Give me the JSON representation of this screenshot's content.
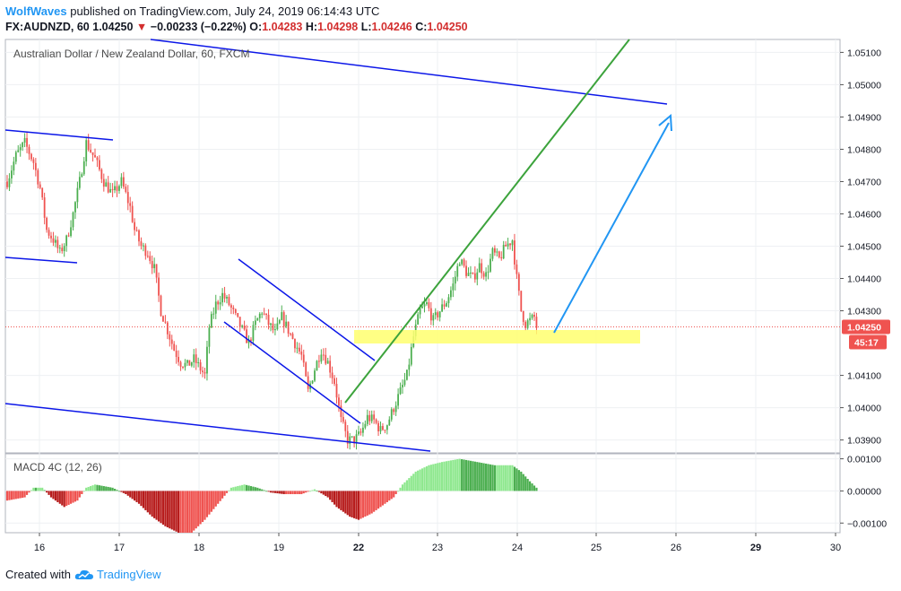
{
  "header": {
    "author": "WolfWaves",
    "published": "published on TradingView.com, July 24, 2019 06:14:43 UTC",
    "symbol_line": "FX:AUDNZD, 60",
    "last": "1.04250",
    "change": "−0.00233 (−0.22%)",
    "o_label": "O:",
    "o": "1.04283",
    "h_label": "H:",
    "h": "1.04298",
    "l_label": "L:",
    "l": "1.04246",
    "c_label": "C:",
    "c": "1.04250"
  },
  "footer": {
    "created_with": "Created with",
    "brand": "TradingView",
    "logo_icon": "tradingview-cloud-icon"
  },
  "colors": {
    "up": "#4caf50",
    "down": "#ef5350",
    "blue": "#0c17e8",
    "green": "#3ca33c",
    "arrow": "#2196f3",
    "zone": "#ffff6e",
    "macd_up": "#8fe88f",
    "macd_up_dark": "#4caf50",
    "macd_down": "#ef5350",
    "macd_down_dark": "#b71c1c"
  },
  "chart_data": {
    "type": "candlestick",
    "title": "Australian Dollar / New Zealand Dollar, 60, FXCM",
    "x_ticks": [
      "16",
      "17",
      "18",
      "19",
      "22",
      "23",
      "24",
      "25",
      "26",
      "29",
      "30"
    ],
    "y_ticks": [
      "1.05100",
      "1.05000",
      "1.04900",
      "1.04800",
      "1.04700",
      "1.04600",
      "1.04500",
      "1.04400",
      "1.04300",
      "1.04100",
      "1.04000",
      "1.03900"
    ],
    "ylim": [
      1.0386,
      1.0514
    ],
    "price_label": "1.04250",
    "countdown_label": "45:17",
    "path": [
      [
        0,
        1.047
      ],
      [
        4,
        1.0478
      ],
      [
        8,
        1.0482
      ],
      [
        12,
        1.0476
      ],
      [
        15,
        1.0468
      ],
      [
        18,
        1.0455
      ],
      [
        21,
        1.0452
      ],
      [
        24,
        1.0448
      ],
      [
        27,
        1.0452
      ],
      [
        30,
        1.046
      ],
      [
        33,
        1.047
      ],
      [
        36,
        1.0482
      ],
      [
        40,
        1.0477
      ],
      [
        44,
        1.047
      ],
      [
        48,
        1.0466
      ],
      [
        52,
        1.047
      ],
      [
        56,
        1.0462
      ],
      [
        58,
        1.0455
      ],
      [
        61,
        1.045
      ],
      [
        64,
        1.0448
      ],
      [
        67,
        1.0443
      ],
      [
        70,
        1.043
      ],
      [
        73,
        1.0424
      ],
      [
        76,
        1.0418
      ],
      [
        79,
        1.0414
      ],
      [
        82,
        1.0413
      ],
      [
        85,
        1.0415
      ],
      [
        88,
        1.0412
      ],
      [
        90,
        1.041
      ],
      [
        92,
        1.0425
      ],
      [
        95,
        1.0432
      ],
      [
        98,
        1.0435
      ],
      [
        101,
        1.0432
      ],
      [
        104,
        1.0428
      ],
      [
        107,
        1.0424
      ],
      [
        110,
        1.042
      ],
      [
        113,
        1.0426
      ],
      [
        116,
        1.043
      ],
      [
        119,
        1.0426
      ],
      [
        122,
        1.0423
      ],
      [
        125,
        1.0428
      ],
      [
        128,
        1.0424
      ],
      [
        131,
        1.042
      ],
      [
        134,
        1.0416
      ],
      [
        137,
        1.0405
      ],
      [
        140,
        1.0412
      ],
      [
        143,
        1.0418
      ],
      [
        146,
        1.0414
      ],
      [
        149,
        1.0408
      ],
      [
        152,
        1.0396
      ],
      [
        155,
        1.039
      ],
      [
        158,
        1.039
      ],
      [
        161,
        1.0392
      ],
      [
        164,
        1.0397
      ],
      [
        167,
        1.0396
      ],
      [
        170,
        1.0393
      ],
      [
        173,
        1.0395
      ],
      [
        176,
        1.04
      ],
      [
        179,
        1.0405
      ],
      [
        182,
        1.041
      ],
      [
        185,
        1.0422
      ],
      [
        188,
        1.043
      ],
      [
        191,
        1.0432
      ],
      [
        194,
        1.0427
      ],
      [
        197,
        1.043
      ],
      [
        200,
        1.0433
      ],
      [
        203,
        1.0438
      ],
      [
        206,
        1.0446
      ],
      [
        209,
        1.0442
      ],
      [
        212,
        1.044
      ],
      [
        215,
        1.0444
      ],
      [
        218,
        1.0441
      ],
      [
        221,
        1.0448
      ],
      [
        224,
        1.0446
      ],
      [
        227,
        1.045
      ],
      [
        230,
        1.0452
      ],
      [
        232,
        1.044
      ],
      [
        234,
        1.043
      ],
      [
        236,
        1.0426
      ],
      [
        238,
        1.0427
      ],
      [
        240,
        1.0428
      ],
      [
        241,
        1.0425
      ]
    ],
    "macd": {
      "labels": [
        "MACD 4C (12, 26)"
      ],
      "y_ticks": [
        "0.00100",
        "0.00000",
        "−0.00100"
      ],
      "ylim": [
        -0.0013,
        0.0011
      ],
      "path": [
        [
          0,
          -0.0003
        ],
        [
          8,
          -0.0002
        ],
        [
          12,
          0.0001
        ],
        [
          16,
          0.0001
        ],
        [
          20,
          -0.0002
        ],
        [
          26,
          -0.0005
        ],
        [
          32,
          -0.0003
        ],
        [
          36,
          0.0001
        ],
        [
          40,
          0.0002
        ],
        [
          48,
          0.0001
        ],
        [
          54,
          -0.0001
        ],
        [
          60,
          -0.0004
        ],
        [
          66,
          -0.0008
        ],
        [
          72,
          -0.0011
        ],
        [
          78,
          -0.0013
        ],
        [
          84,
          -0.0013
        ],
        [
          90,
          -0.0009
        ],
        [
          96,
          -0.0004
        ],
        [
          102,
          0.0001
        ],
        [
          108,
          0.0002
        ],
        [
          114,
          0.0001
        ],
        [
          120,
          -5e-05
        ],
        [
          126,
          -0.0001
        ],
        [
          134,
          -0.0001
        ],
        [
          140,
          5e-05
        ],
        [
          146,
          -0.0002
        ],
        [
          150,
          -0.0005
        ],
        [
          156,
          -0.0008
        ],
        [
          160,
          -0.0009
        ],
        [
          166,
          -0.0007
        ],
        [
          172,
          -0.0004
        ],
        [
          176,
          -0.0002
        ],
        [
          180,
          0.0002
        ],
        [
          186,
          0.0006
        ],
        [
          192,
          0.0008
        ],
        [
          198,
          0.0009
        ],
        [
          206,
          0.001
        ],
        [
          214,
          0.0009
        ],
        [
          222,
          0.0008
        ],
        [
          230,
          0.0008
        ],
        [
          234,
          0.0006
        ],
        [
          238,
          0.0003
        ],
        [
          241,
          0.0001
        ]
      ]
    }
  }
}
